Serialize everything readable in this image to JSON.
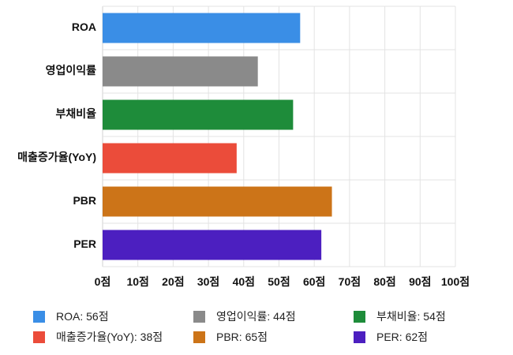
{
  "chart_data": {
    "type": "bar",
    "orientation": "horizontal",
    "categories": [
      "ROA",
      "영업이익률",
      "부채비율",
      "매출증가율(YoY)",
      "PBR",
      "PER"
    ],
    "values": [
      56,
      44,
      54,
      38,
      65,
      62
    ],
    "colors": [
      "#3a8ee6",
      "#8a8a8a",
      "#1e8c3a",
      "#eb4c3a",
      "#cc7418",
      "#4c1fc0"
    ],
    "xlim": [
      0,
      100
    ],
    "x_ticks": [
      "0점",
      "10점",
      "20점",
      "30점",
      "40점",
      "50점",
      "60점",
      "70점",
      "80점",
      "90점",
      "100점"
    ],
    "grid": true,
    "legend_position": "bottom",
    "legend": [
      {
        "label": "ROA: 56점",
        "color": "#3a8ee6"
      },
      {
        "label": "영업이익률: 44점",
        "color": "#8a8a8a"
      },
      {
        "label": "부채비율: 54점",
        "color": "#1e8c3a"
      },
      {
        "label": "매출증가율(YoY): 38점",
        "color": "#eb4c3a"
      },
      {
        "label": "PBR: 65점",
        "color": "#cc7418"
      },
      {
        "label": "PER: 62점",
        "color": "#4c1fc0"
      }
    ]
  }
}
